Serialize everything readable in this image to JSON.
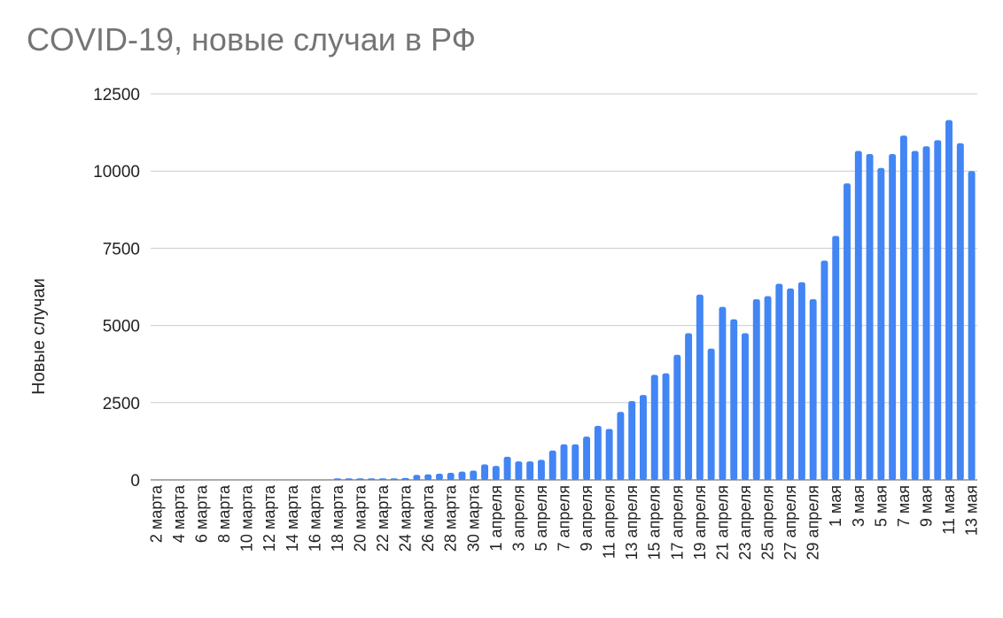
{
  "chart_data": {
    "type": "bar",
    "title": "COVID-19, новые случаи в РФ",
    "xlabel": "",
    "ylabel": "Новые случаи",
    "ylim": [
      0,
      12500
    ],
    "yticks": [
      0,
      2500,
      5000,
      7500,
      10000,
      12500
    ],
    "grid": true,
    "legend": "none",
    "bar_color": "#4285f4",
    "categories": [
      "2 марта",
      "3 марта",
      "4 марта",
      "5 марта",
      "6 марта",
      "7 марта",
      "8 марта",
      "9 марта",
      "10 марта",
      "11 марта",
      "12 марта",
      "13 марта",
      "14 марта",
      "15 марта",
      "16 марта",
      "17 марта",
      "18 марта",
      "19 марта",
      "20 марта",
      "21 марта",
      "22 марта",
      "23 марта",
      "24 марта",
      "25 марта",
      "26 марта",
      "27 марта",
      "28 марта",
      "29 марта",
      "30 марта",
      "31 марта",
      "1 апреля",
      "2 апреля",
      "3 апреля",
      "4 апреля",
      "5 апреля",
      "6 апреля",
      "7 апреля",
      "8 апреля",
      "9 апреля",
      "10 апреля",
      "11 апреля",
      "12 апреля",
      "13 апреля",
      "14 апреля",
      "15 апреля",
      "16 апреля",
      "17 апреля",
      "18 апреля",
      "19 апреля",
      "20 апреля",
      "21 апреля",
      "22 апреля",
      "23 апреля",
      "24 апреля",
      "25 апреля",
      "26 апреля",
      "27 апреля",
      "28 апреля",
      "29 апреля",
      "30 апреля",
      "1 мая",
      "2 мая",
      "3 мая",
      "4 мая",
      "5 мая",
      "6 мая",
      "7 мая",
      "8 мая",
      "9 мая",
      "10 мая",
      "11 мая",
      "12 мая",
      "13 мая"
    ],
    "values": [
      0,
      0,
      0,
      0,
      0,
      0,
      0,
      0,
      0,
      0,
      0,
      0,
      0,
      0,
      0,
      0,
      50,
      50,
      50,
      50,
      50,
      50,
      60,
      160,
      180,
      200,
      230,
      270,
      300,
      500,
      450,
      750,
      600,
      600,
      650,
      950,
      1150,
      1150,
      1400,
      1750,
      1650,
      2200,
      2550,
      2750,
      3400,
      3450,
      4050,
      4750,
      6000,
      4250,
      5600,
      5200,
      4750,
      5850,
      5950,
      6350,
      6200,
      6400,
      5850,
      7100,
      7900,
      9600,
      10650,
      10550,
      10100,
      10550,
      11150,
      10650,
      10800,
      11000,
      11650,
      10900,
      10000
    ]
  }
}
